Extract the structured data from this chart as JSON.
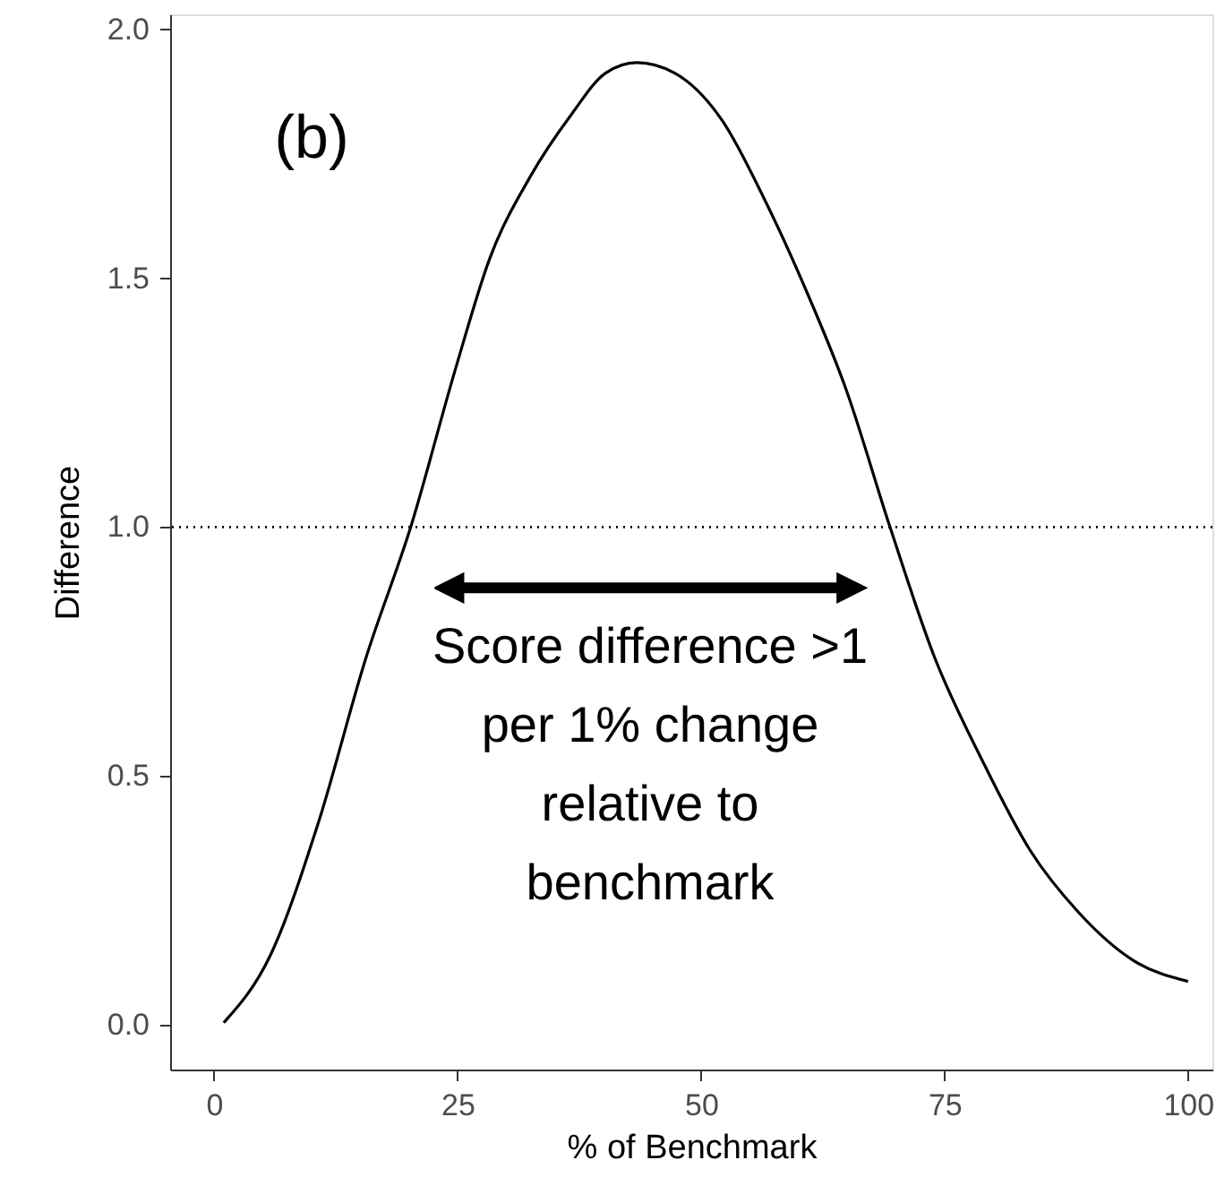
{
  "chart_data": {
    "type": "line",
    "xlabel": "% of Benchmark",
    "ylabel": "Difference",
    "x": [
      1,
      5.8,
      10.7,
      15.6,
      20.2,
      24.8,
      28.3,
      32.5,
      36.7,
      40.2,
      43.4,
      47.3,
      52.2,
      56.4,
      60.6,
      64.9,
      69.4,
      74.0,
      78.9,
      83.8,
      88.8,
      94.4,
      100
    ],
    "series": [
      {
        "color": "#000000",
        "values": [
          0.004,
          0.14,
          0.405,
          0.737,
          1.0,
          1.318,
          1.539,
          1.705,
          1.829,
          1.912,
          1.933,
          1.912,
          1.816,
          1.663,
          1.484,
          1.276,
          1.0,
          0.737,
          0.53,
          0.35,
          0.225,
          0.129,
          0.087
        ]
      }
    ],
    "xlim": [
      -4.5,
      102.5
    ],
    "ylim": [
      -0.09,
      2.03
    ],
    "xticks": [
      0,
      25,
      50,
      75,
      100
    ],
    "yticks": [
      {
        "value": 0,
        "label": "0.0"
      },
      {
        "value": 0.5,
        "label": "0.5"
      },
      {
        "value": 1,
        "label": "1.0"
      },
      {
        "value": 1.5,
        "label": "1.5"
      },
      {
        "value": 2,
        "label": "2.0"
      }
    ],
    "grid": false,
    "marker": "none",
    "line_style": "solid",
    "ref_lines": [
      {
        "axis": "y",
        "value": 1,
        "line_style": "dotted",
        "color": "#000000"
      }
    ],
    "annotations": [
      "(b)",
      "Score difference >1\nper 1% change\nrelative to\nbenchmark"
    ]
  }
}
